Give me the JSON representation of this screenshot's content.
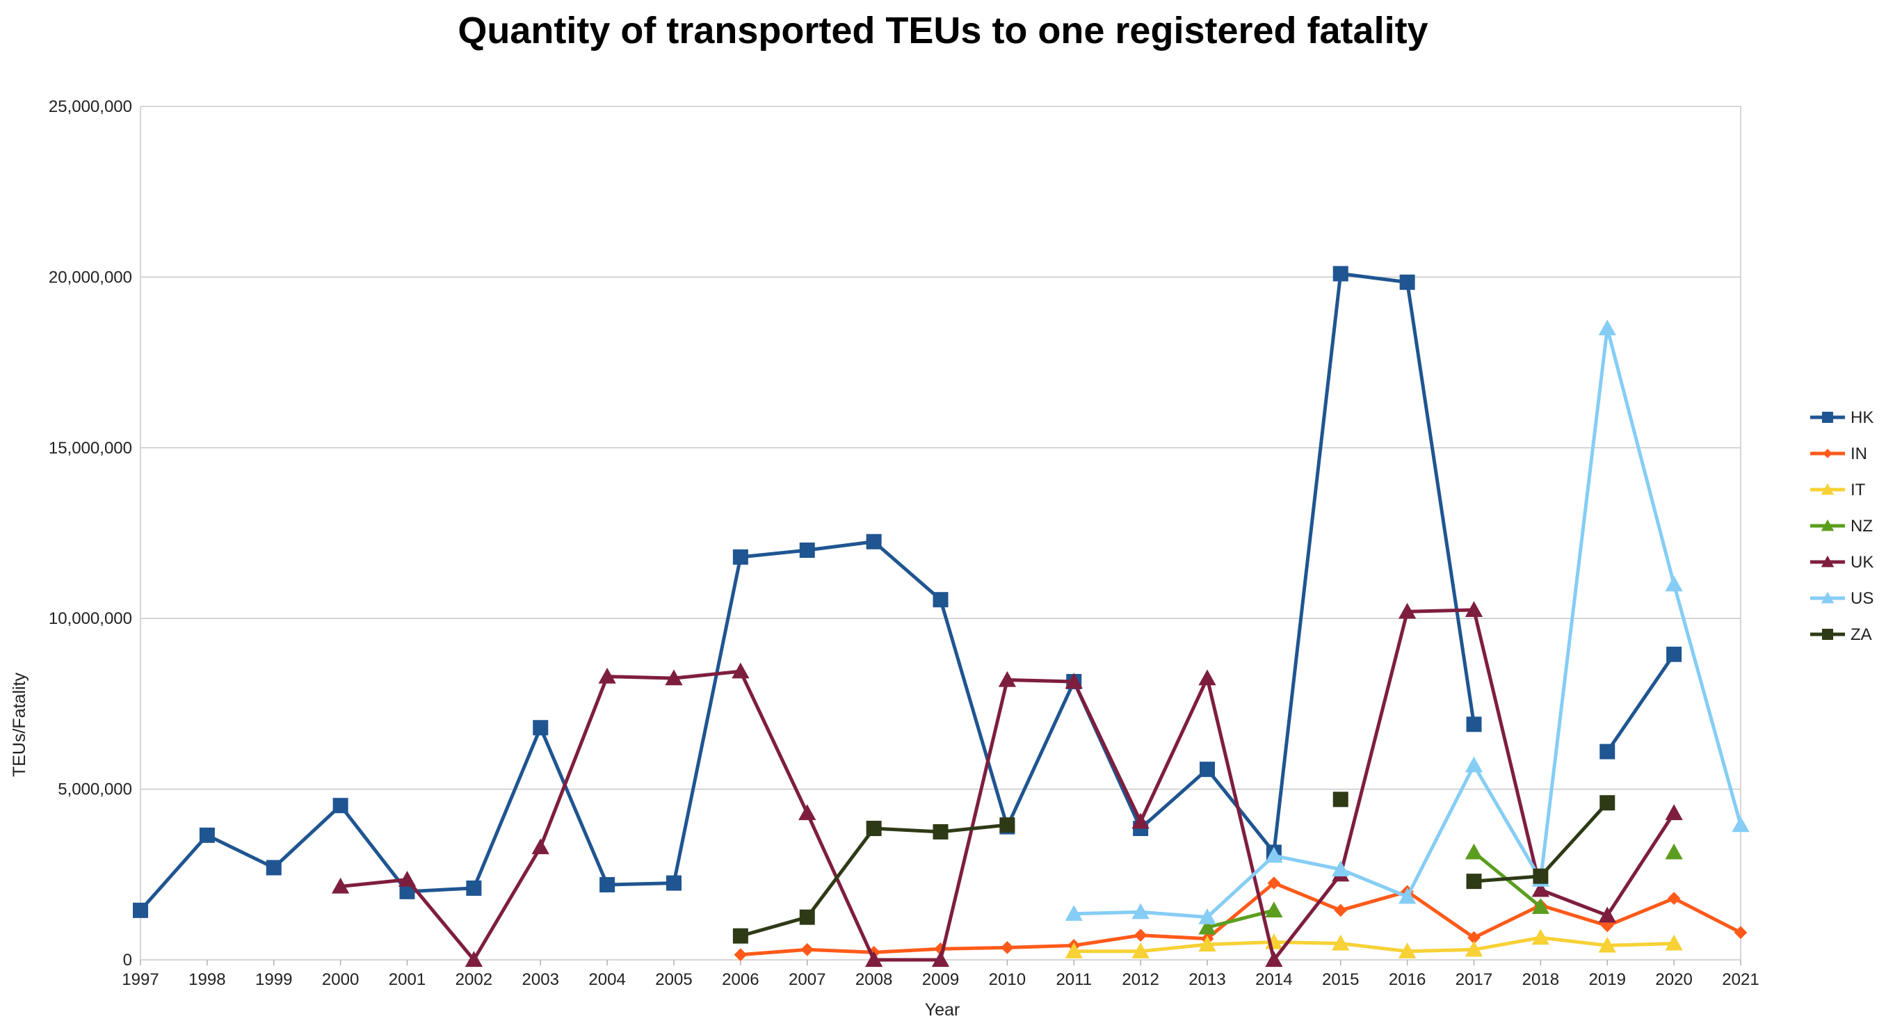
{
  "chart_data": {
    "type": "line",
    "title": "Quantity of transported TEUs to one registered fatality",
    "xlabel": "Year",
    "ylabel": "TEUs/Fatality",
    "ylim": [
      0,
      25000000
    ],
    "grid": "horizontal",
    "legend_position": "right",
    "categories": [
      "1997",
      "1998",
      "1999",
      "2000",
      "2001",
      "2002",
      "2003",
      "2004",
      "2005",
      "2006",
      "2007",
      "2008",
      "2009",
      "2010",
      "2011",
      "2012",
      "2013",
      "2014",
      "2015",
      "2016",
      "2017",
      "2018",
      "2019",
      "2020",
      "2021"
    ],
    "y_ticks": [
      0,
      5000000,
      10000000,
      15000000,
      20000000,
      25000000
    ],
    "y_tick_labels": [
      "0",
      "5,000,000",
      "10,000,000",
      "15,000,000",
      "20,000,000",
      "25,000,000"
    ],
    "series": [
      {
        "name": "HK",
        "color": "#1f5591",
        "marker": "square",
        "values": [
          1450000,
          3650000,
          2700000,
          4520000,
          2000000,
          2100000,
          6800000,
          2200000,
          2250000,
          11800000,
          12000000,
          12250000,
          10550000,
          3900000,
          8150000,
          3850000,
          5580000,
          3150000,
          20100000,
          19850000,
          6900000,
          null,
          6100000,
          8950000,
          null
        ]
      },
      {
        "name": "IN",
        "color": "#ff5a1a",
        "marker": "diamond",
        "values": [
          null,
          null,
          null,
          null,
          null,
          null,
          null,
          null,
          null,
          150000,
          300000,
          220000,
          320000,
          360000,
          420000,
          720000,
          620000,
          2250000,
          1450000,
          2000000,
          650000,
          1600000,
          1000000,
          1800000,
          800000
        ]
      },
      {
        "name": "IT",
        "color": "#f7d135",
        "marker": "triangle",
        "values": [
          null,
          null,
          null,
          null,
          null,
          null,
          null,
          null,
          null,
          null,
          null,
          null,
          null,
          null,
          250000,
          250000,
          450000,
          520000,
          480000,
          250000,
          300000,
          650000,
          420000,
          480000,
          null
        ]
      },
      {
        "name": "NZ",
        "color": "#5b9e1f",
        "marker": "triangle",
        "values": [
          null,
          null,
          null,
          null,
          null,
          null,
          null,
          null,
          null,
          null,
          null,
          null,
          null,
          null,
          null,
          null,
          950000,
          1450000,
          null,
          null,
          3150000,
          1550000,
          null,
          3150000,
          null
        ]
      },
      {
        "name": "UK",
        "color": "#7e1e3e",
        "marker": "triangle",
        "values": [
          null,
          null,
          null,
          2150000,
          2350000,
          0,
          3300000,
          8300000,
          8250000,
          8450000,
          4300000,
          0,
          0,
          8200000,
          8150000,
          4050000,
          8250000,
          0,
          2500000,
          10200000,
          10250000,
          2050000,
          1300000,
          4300000,
          null
        ]
      },
      {
        "name": "US",
        "color": "#85cdf5",
        "marker": "triangle",
        "values": [
          null,
          null,
          null,
          null,
          null,
          null,
          null,
          null,
          null,
          null,
          null,
          null,
          null,
          null,
          1350000,
          1400000,
          1250000,
          3050000,
          2650000,
          1850000,
          5700000,
          2350000,
          18500000,
          11000000,
          3950000
        ]
      },
      {
        "name": "ZA",
        "color": "#2e3a16",
        "marker": "square",
        "values": [
          null,
          null,
          null,
          null,
          null,
          null,
          null,
          null,
          null,
          700000,
          1250000,
          3850000,
          3750000,
          3950000,
          null,
          null,
          null,
          null,
          4700000,
          null,
          2300000,
          2450000,
          4600000,
          null,
          null
        ]
      }
    ]
  }
}
